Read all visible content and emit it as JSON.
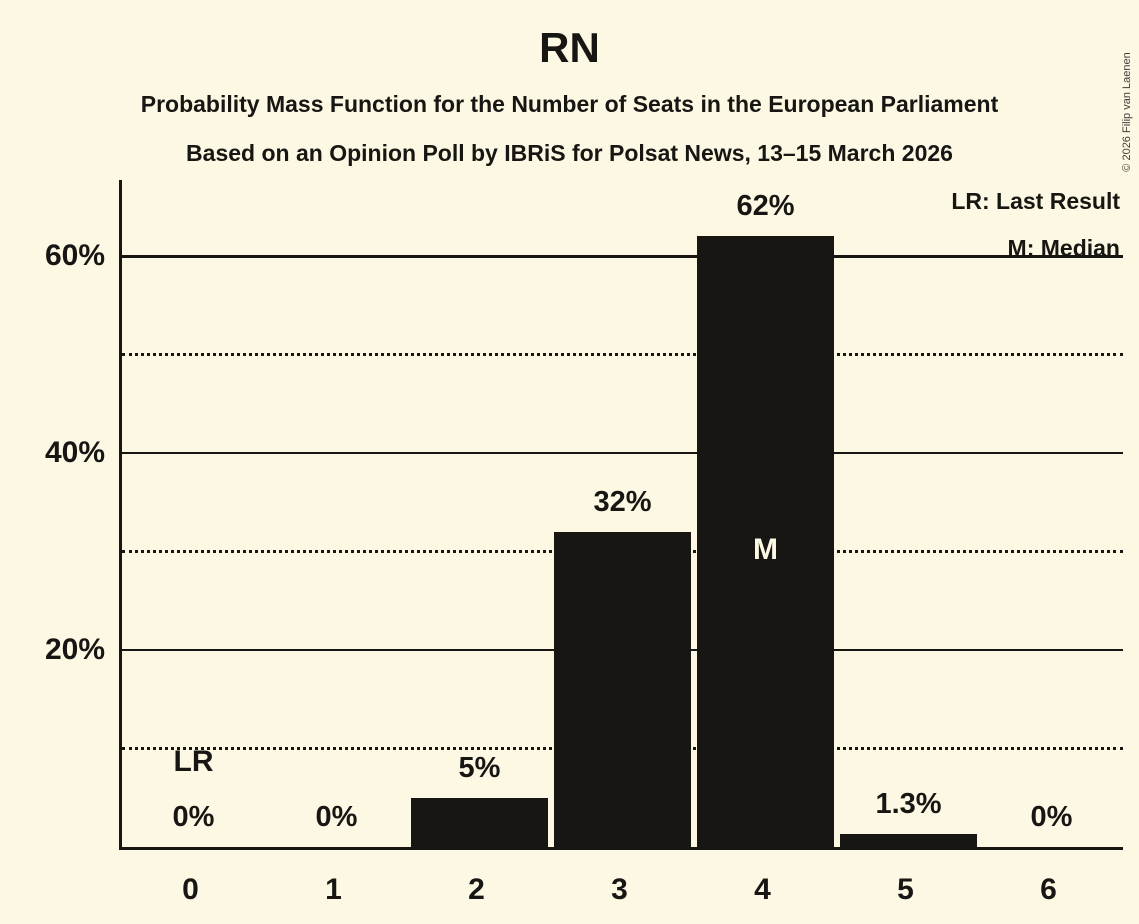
{
  "copyright": "© 2026 Filip van Laenen",
  "chart_data": {
    "type": "bar",
    "title": "RN",
    "subtitle": "Probability Mass Function for the Number of Seats in the European Parliament",
    "source_line": "Based on an Opinion Poll by IBRiS for Polsat News, 13–15 March 2026",
    "legend": {
      "lr": "LR: Last Result",
      "m": "M: Median"
    },
    "categories": [
      "0",
      "1",
      "2",
      "3",
      "4",
      "5",
      "6"
    ],
    "values": [
      0,
      0,
      5,
      32,
      62,
      1.3,
      0
    ],
    "bar_labels": [
      "0%",
      "0%",
      "5%",
      "32%",
      "62%",
      "1.3%",
      "0%"
    ],
    "markers": {
      "last_result": {
        "category_index": 0,
        "label": "LR"
      },
      "median": {
        "category_index": 4,
        "label": "M"
      }
    },
    "y_axis": {
      "solid_ticks": [
        {
          "value": 20,
          "label": "20%"
        },
        {
          "value": 40,
          "label": "40%"
        },
        {
          "value": 60,
          "label": "60%"
        }
      ],
      "dotted_values": [
        10,
        30,
        50
      ],
      "max_value": 67.5
    },
    "xlabel": "",
    "ylabel": "",
    "grid": "horizontal",
    "legend_position": "top-right",
    "colors": {
      "background": "#FCF8E3",
      "bar": "#171613",
      "text": "#171613",
      "label_on_bar": "#FCF8E3",
      "copyright": "#3F3E39"
    }
  }
}
